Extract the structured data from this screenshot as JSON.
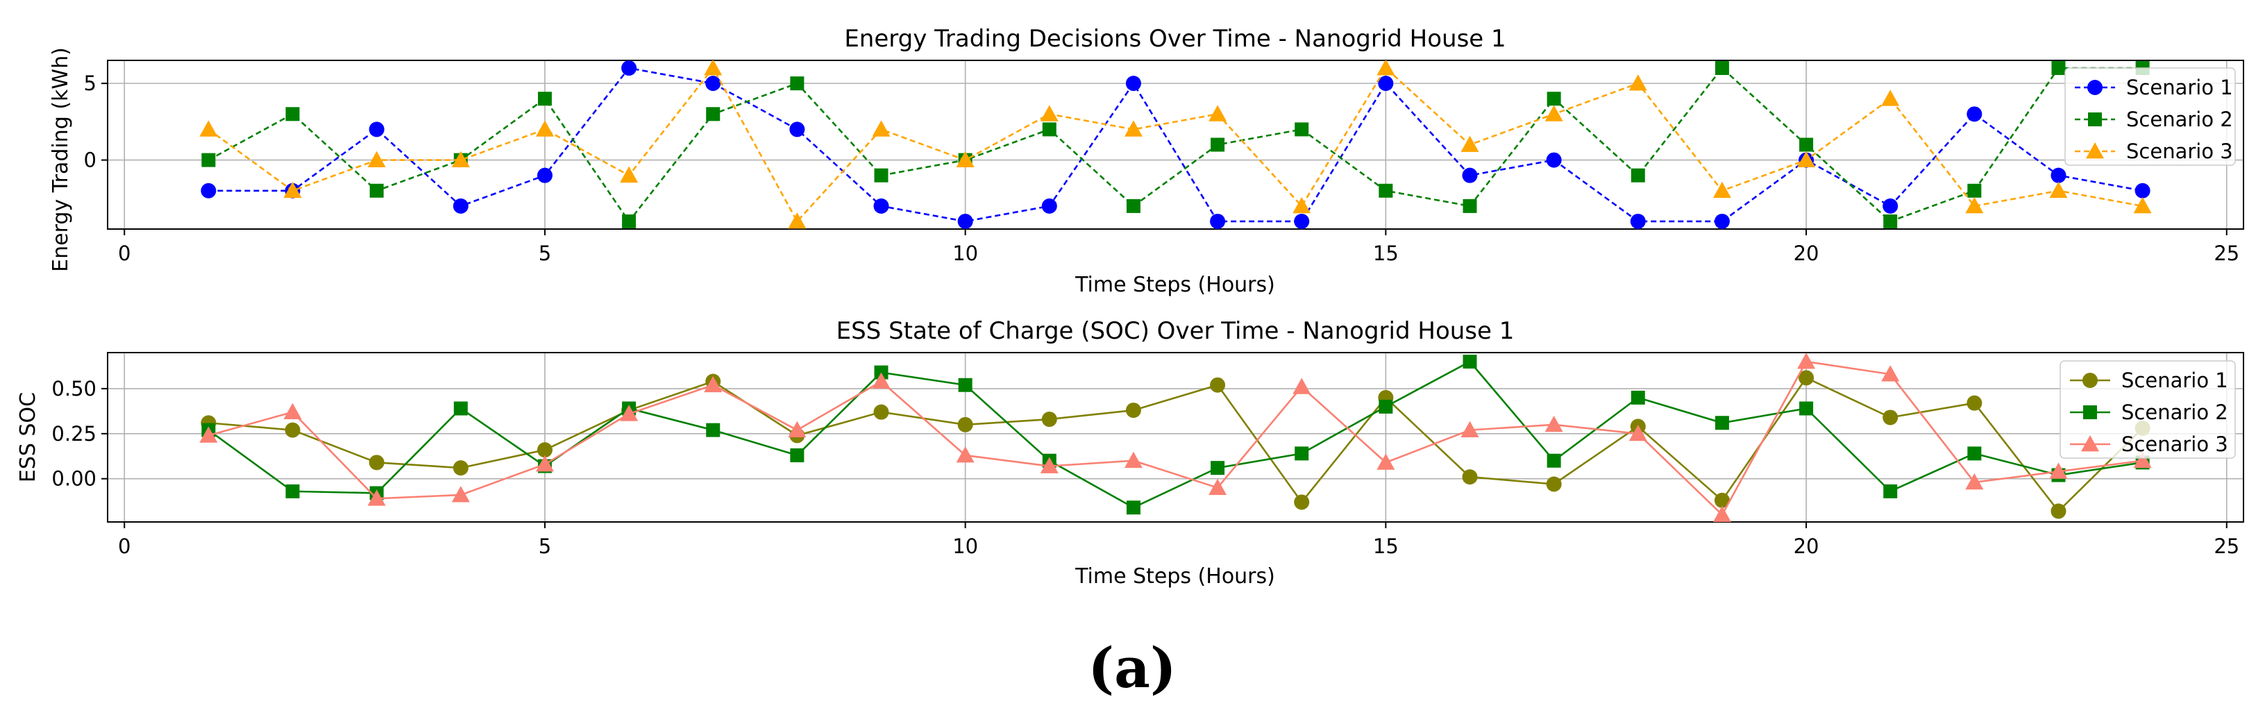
{
  "chart_data": [
    {
      "type": "line",
      "title": "Energy Trading Decisions Over Time - Nanogrid House 1",
      "xlabel": "Time Steps (Hours)",
      "ylabel": "Energy Trading (kWh)",
      "xlim": [
        -0.2,
        25.2
      ],
      "ylim": [
        -4.5,
        6.5
      ],
      "xticks": [
        0,
        5,
        10,
        15,
        20,
        25
      ],
      "yticks": [
        0,
        5
      ],
      "grid": true,
      "legend_position": "top-right",
      "x": [
        1,
        2,
        3,
        4,
        5,
        6,
        7,
        8,
        9,
        10,
        11,
        12,
        13,
        14,
        15,
        16,
        17,
        18,
        19,
        20,
        21,
        22,
        23,
        24
      ],
      "series": [
        {
          "name": "Scenario 1",
          "color": "#0000ff",
          "marker": "circle",
          "linestyle": "dashed",
          "values": [
            -2,
            -2,
            2,
            -3,
            -1,
            6,
            5,
            2,
            -3,
            -4,
            -3,
            5,
            -4,
            -4,
            5,
            -1,
            0,
            -4,
            -4,
            0,
            -3,
            3,
            -1,
            -2
          ]
        },
        {
          "name": "Scenario 2",
          "color": "#008000",
          "marker": "square",
          "linestyle": "dashed",
          "values": [
            0,
            3,
            -2,
            0,
            4,
            -4,
            3,
            5,
            -1,
            0,
            2,
            -3,
            1,
            2,
            -2,
            -3,
            4,
            -1,
            6,
            1,
            -4,
            -2,
            6,
            6
          ]
        },
        {
          "name": "Scenario 3",
          "color": "#ffa500",
          "marker": "triangle",
          "linestyle": "dashed",
          "values": [
            2,
            -2,
            0,
            0,
            2,
            -1,
            6,
            -4,
            2,
            0,
            3,
            2,
            3,
            -3,
            6,
            1,
            3,
            5,
            -2,
            0,
            4,
            -3,
            -2,
            -3
          ]
        }
      ]
    },
    {
      "type": "line",
      "title": "ESS State of Charge (SOC) Over Time - Nanogrid House 1",
      "xlabel": "Time Steps (Hours)",
      "ylabel": "ESS SOC",
      "xlim": [
        -0.2,
        25.2
      ],
      "ylim": [
        -0.24,
        0.7
      ],
      "xticks": [
        0,
        5,
        10,
        15,
        20,
        25
      ],
      "yticks": [
        0.0,
        0.25,
        0.5
      ],
      "ytick_labels": [
        "0.00",
        "0.25",
        "0.50"
      ],
      "grid": true,
      "legend_position": "top-right",
      "x": [
        1,
        2,
        3,
        4,
        5,
        6,
        7,
        8,
        9,
        10,
        11,
        12,
        13,
        14,
        15,
        16,
        17,
        18,
        19,
        20,
        21,
        22,
        23,
        24
      ],
      "series": [
        {
          "name": "Scenario 1",
          "color": "#808000",
          "marker": "circle",
          "linestyle": "solid",
          "values": [
            0.31,
            0.27,
            0.09,
            0.06,
            0.16,
            0.38,
            0.54,
            0.24,
            0.37,
            0.3,
            0.33,
            0.38,
            0.52,
            -0.13,
            0.45,
            0.01,
            -0.03,
            0.29,
            -0.12,
            0.56,
            0.34,
            0.42,
            -0.18,
            0.28
          ]
        },
        {
          "name": "Scenario 2",
          "color": "#008000",
          "marker": "square",
          "linestyle": "solid",
          "values": [
            0.27,
            -0.07,
            -0.08,
            0.39,
            0.07,
            0.39,
            0.27,
            0.13,
            0.59,
            0.52,
            0.1,
            -0.16,
            0.06,
            0.14,
            0.4,
            0.65,
            0.1,
            0.45,
            0.31,
            0.39,
            -0.07,
            0.14,
            0.02,
            0.09
          ]
        },
        {
          "name": "Scenario 3",
          "color": "#fa8072",
          "marker": "triangle",
          "linestyle": "solid",
          "values": [
            0.24,
            0.37,
            -0.11,
            -0.09,
            0.08,
            0.36,
            0.52,
            0.27,
            0.54,
            0.13,
            0.07,
            0.1,
            -0.05,
            0.51,
            0.09,
            0.27,
            0.3,
            0.25,
            -0.2,
            0.65,
            0.58,
            -0.02,
            0.04,
            0.1
          ]
        }
      ]
    }
  ],
  "caption": "(a)"
}
